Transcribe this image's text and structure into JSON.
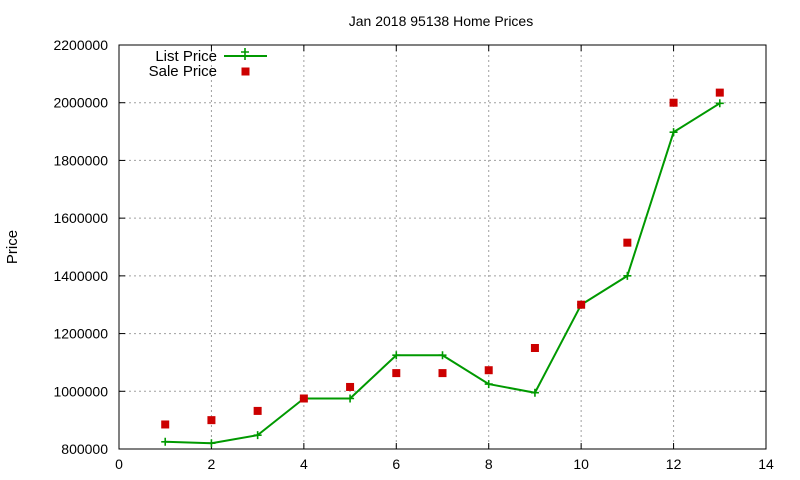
{
  "chart_data": {
    "type": "line",
    "title": "Jan 2018 95138 Home Prices",
    "xlabel": "",
    "ylabel": "Price",
    "xlim": [
      0,
      14
    ],
    "ylim": [
      800000,
      2200000
    ],
    "x_ticks": [
      0,
      2,
      4,
      6,
      8,
      10,
      12,
      14
    ],
    "y_ticks": [
      800000,
      1000000,
      1200000,
      1400000,
      1600000,
      1800000,
      2000000,
      2200000
    ],
    "grid": true,
    "legend_position": "top-left",
    "series": [
      {
        "name": "List Price",
        "style": "lines+crosses",
        "color": "#009900",
        "x": [
          1,
          2,
          3,
          4,
          5,
          6,
          7,
          8,
          9,
          10,
          11,
          12,
          13
        ],
        "y": [
          825000,
          820000,
          848000,
          975000,
          975000,
          1125000,
          1125000,
          1025000,
          995000,
          1300000,
          1400000,
          1898000,
          1998000
        ]
      },
      {
        "name": "Sale Price",
        "style": "squares",
        "color": "#cc0000",
        "x": [
          1,
          2,
          3,
          4,
          5,
          6,
          7,
          8,
          9,
          10,
          11,
          12,
          13
        ],
        "y": [
          885000,
          900000,
          932000,
          975000,
          1015000,
          1063000,
          1063000,
          1073000,
          1150000,
          1300000,
          1515000,
          2000000,
          2035000
        ]
      }
    ]
  }
}
